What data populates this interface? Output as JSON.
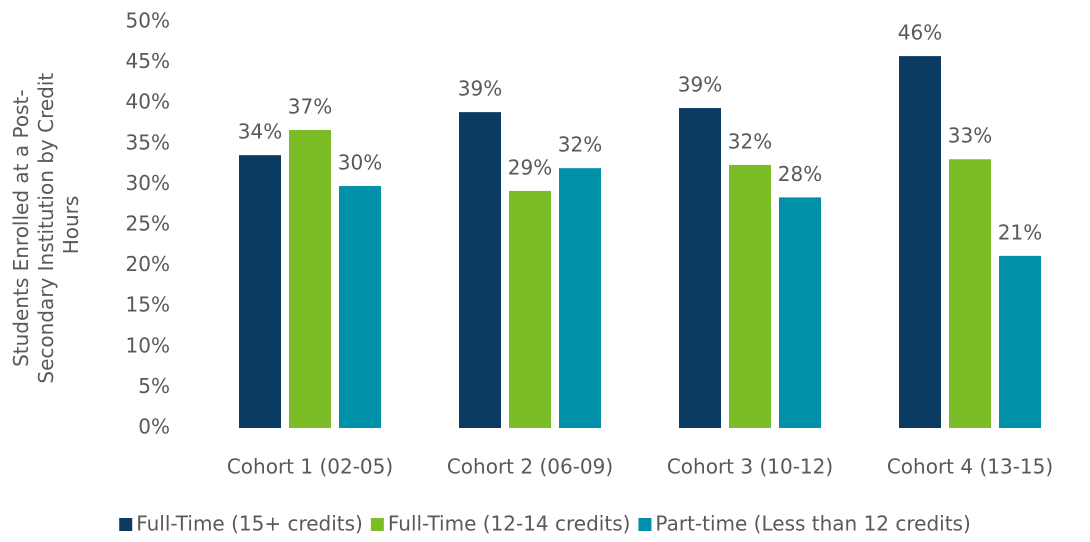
{
  "chart_data": {
    "type": "bar",
    "ylabel": [
      "Students Enrolled at a Post-",
      "Secondary Institution by Credit",
      "Hours"
    ],
    "categories": [
      "Cohort 1 (02-05)",
      "Cohort 2 (06-09)",
      "Cohort 3 (10-12)",
      "Cohort 4 (13-15)"
    ],
    "series": [
      {
        "name": "Full-Time (15+ credits)",
        "color": "#0b3a63",
        "values": [
          33.6,
          38.9,
          39.4,
          45.8
        ],
        "value_labels": [
          "34%",
          "39%",
          "39%",
          "46%"
        ]
      },
      {
        "name": "Full-Time (12-14 credits)",
        "color": "#7bbd27",
        "values": [
          36.7,
          29.2,
          32.4,
          33.1
        ],
        "value_labels": [
          "37%",
          "29%",
          "32%",
          "33%"
        ]
      },
      {
        "name": "Part-time (Less than 12 credits)",
        "color": "#0091a9",
        "values": [
          29.8,
          32.0,
          28.4,
          21.2
        ],
        "value_labels": [
          "30%",
          "32%",
          "28%",
          "21%"
        ]
      }
    ],
    "ylim": [
      0,
      50
    ],
    "yticks": [
      {
        "value": 0,
        "label": "0%"
      },
      {
        "value": 5,
        "label": "5%"
      },
      {
        "value": 10,
        "label": "10%"
      },
      {
        "value": 15,
        "label": "15%"
      },
      {
        "value": 20,
        "label": "20%"
      },
      {
        "value": 25,
        "label": "25%"
      },
      {
        "value": 30,
        "label": "30%"
      },
      {
        "value": 35,
        "label": "35%"
      },
      {
        "value": 40,
        "label": "40%"
      },
      {
        "value": 45,
        "label": "45%"
      },
      {
        "value": 50,
        "label": "50%"
      }
    ],
    "grid": false,
    "legend": "bottom"
  }
}
